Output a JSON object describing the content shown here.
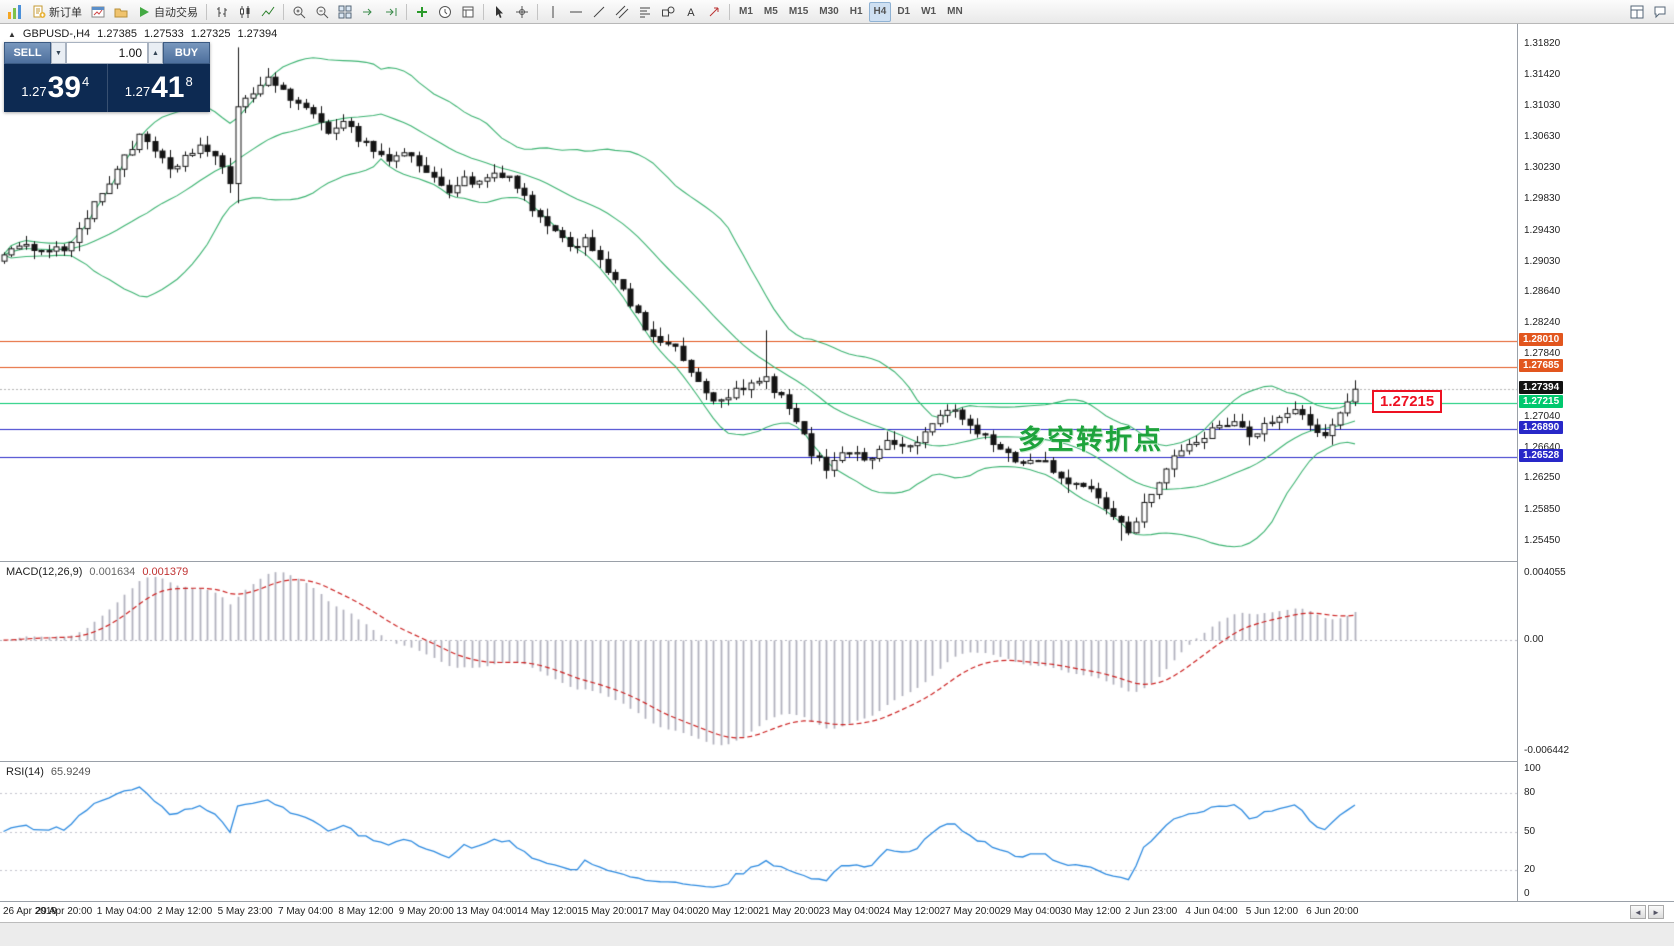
{
  "toolbar": {
    "new_order": "新订单",
    "auto_trading": "自动交易",
    "timeframes": [
      "M1",
      "M5",
      "M15",
      "M30",
      "H1",
      "H4",
      "D1",
      "W1",
      "MN"
    ],
    "active_timeframe": "H4"
  },
  "chart": {
    "marker": "▲",
    "symbol": "GBPUSD-,H4",
    "ohlc": {
      "open": "1.27385",
      "high": "1.27533",
      "low": "1.27325",
      "close": "1.27394"
    }
  },
  "trade_panel": {
    "sell_label": "SELL",
    "buy_label": "BUY",
    "volume": "1.00",
    "sell_price": {
      "small": "1.27",
      "big": "39",
      "sup": "4"
    },
    "buy_price": {
      "small": "1.27",
      "big": "41",
      "sup": "8"
    }
  },
  "annotations": {
    "turning_point": "多空转折点",
    "price_callout": "1.27215"
  },
  "scrollbar": {
    "left": "◄",
    "right": "►"
  },
  "chart_data": {
    "type": "candlestick",
    "symbol": "GBPUSD-",
    "timeframe": "H4",
    "price_axis": {
      "axis_min": 1.2519,
      "axis_max": 1.3208,
      "ticks": [
        1.3182,
        1.3142,
        1.3103,
        1.3063,
        1.3023,
        1.2983,
        1.2943,
        1.2903,
        1.2864,
        1.2824,
        1.2784,
        1.2744,
        1.2704,
        1.2664,
        1.2625,
        1.2585,
        1.2545
      ]
    },
    "hlines": [
      {
        "price": 1.2801,
        "label": "1.28010",
        "color": "#E2561E"
      },
      {
        "price": 1.27685,
        "label": "1.27685",
        "color": "#E2561E"
      },
      {
        "price": 1.27215,
        "label": "1.27215",
        "color": "#00C86E"
      },
      {
        "price": 1.2689,
        "label": "1.26890",
        "color": "#2828C8"
      },
      {
        "price": 1.26528,
        "label": "1.26528",
        "color": "#2828C8"
      }
    ],
    "current_price": {
      "price": 1.27394,
      "label": "1.27394",
      "color": "#111111"
    },
    "bars_total": 180,
    "bar_keyframes": [
      [
        0,
        1.2916
      ],
      [
        4,
        1.2922
      ],
      [
        8,
        1.2918
      ],
      [
        10,
        1.2945
      ],
      [
        12,
        1.2975
      ],
      [
        14,
        1.3005
      ],
      [
        16,
        1.304
      ],
      [
        18,
        1.3062
      ],
      [
        20,
        1.3045
      ],
      [
        22,
        1.3018
      ],
      [
        24,
        1.3038
      ],
      [
        26,
        1.3052
      ],
      [
        28,
        1.3035
      ],
      [
        30,
        1.3005
      ],
      [
        31,
        1.3105
      ],
      [
        33,
        1.312
      ],
      [
        35,
        1.3135
      ],
      [
        37,
        1.3125
      ],
      [
        39,
        1.3105
      ],
      [
        41,
        1.3088
      ],
      [
        43,
        1.3072
      ],
      [
        45,
        1.3085
      ],
      [
        47,
        1.3062
      ],
      [
        49,
        1.3048
      ],
      [
        51,
        1.3032
      ],
      [
        53,
        1.3045
      ],
      [
        55,
        1.3028
      ],
      [
        57,
        1.3008
      ],
      [
        59,
        1.2995
      ],
      [
        61,
        1.301
      ],
      [
        63,
        1.3002
      ],
      [
        65,
        1.3015
      ],
      [
        67,
        1.3008
      ],
      [
        69,
        1.2985
      ],
      [
        71,
        1.2958
      ],
      [
        73,
        1.2938
      ],
      [
        75,
        1.2922
      ],
      [
        77,
        1.2932
      ],
      [
        79,
        1.2908
      ],
      [
        81,
        1.2878
      ],
      [
        83,
        1.2848
      ],
      [
        85,
        1.2818
      ],
      [
        87,
        1.2802
      ],
      [
        89,
        1.279
      ],
      [
        91,
        1.2762
      ],
      [
        93,
        1.2732
      ],
      [
        95,
        1.2722
      ],
      [
        97,
        1.2736
      ],
      [
        99,
        1.2744
      ],
      [
        101,
        1.2752
      ],
      [
        103,
        1.2728
      ],
      [
        105,
        1.2698
      ],
      [
        107,
        1.2658
      ],
      [
        109,
        1.2638
      ],
      [
        111,
        1.2662
      ],
      [
        113,
        1.2655
      ],
      [
        115,
        1.2648
      ],
      [
        117,
        1.2678
      ],
      [
        119,
        1.2662
      ],
      [
        121,
        1.2672
      ],
      [
        123,
        1.2695
      ],
      [
        125,
        1.2716
      ],
      [
        127,
        1.2702
      ],
      [
        129,
        1.2682
      ],
      [
        131,
        1.267
      ],
      [
        133,
        1.2658
      ],
      [
        135,
        1.2642
      ],
      [
        137,
        1.2652
      ],
      [
        139,
        1.2636
      ],
      [
        141,
        1.262
      ],
      [
        143,
        1.2612
      ],
      [
        145,
        1.2602
      ],
      [
        147,
        1.2578
      ],
      [
        149,
        1.2556
      ],
      [
        151,
        1.2592
      ],
      [
        153,
        1.2622
      ],
      [
        155,
        1.2652
      ],
      [
        157,
        1.2666
      ],
      [
        159,
        1.268
      ],
      [
        161,
        1.269
      ],
      [
        163,
        1.2702
      ],
      [
        165,
        1.2682
      ],
      [
        167,
        1.2692
      ],
      [
        169,
        1.2702
      ],
      [
        171,
        1.2712
      ],
      [
        173,
        1.2696
      ],
      [
        175,
        1.2678
      ],
      [
        177,
        1.2705
      ],
      [
        179,
        1.27394
      ]
    ],
    "spikes": [
      {
        "bar": 31,
        "high": 1.3178,
        "low": 1.2978
      },
      {
        "bar": 101,
        "high": 1.2815
      },
      {
        "bar": 148,
        "low": 1.2545
      },
      {
        "bar": 149,
        "low": 1.2552
      }
    ],
    "bollinger": {
      "period": 20,
      "deviation": 2,
      "color": "#3CB371"
    },
    "time_axis": {
      "bars_per_label": 8,
      "labels": [
        "26 Apr 2019",
        "29 Apr 20:00",
        "1 May 04:00",
        "2 May 12:00",
        "5 May 23:00",
        "7 May 04:00",
        "8 May 12:00",
        "9 May 20:00",
        "13 May 04:00",
        "14 May 12:00",
        "15 May 20:00",
        "17 May 04:00",
        "20 May 12:00",
        "21 May 20:00",
        "23 May 04:00",
        "24 May 12:00",
        "27 May 20:00",
        "29 May 04:00",
        "30 May 12:00",
        "2 Jun 23:00",
        "4 Jun 04:00",
        "5 Jun 12:00",
        "6 Jun 20:00"
      ]
    },
    "indicators": {
      "macd": {
        "name": "MACD(12,26,9)",
        "value_main": "0.001634",
        "value_signal": "0.001379",
        "fast": 12,
        "slow": 26,
        "signal": 9,
        "scale_top": "0.004055",
        "scale_zero": "0.00",
        "scale_bottom": "-0.006442",
        "histogram_color": "#B2B2BE",
        "signal_color": "#CC2222"
      },
      "rsi": {
        "name": "RSI(14)",
        "value": "65.9249",
        "period": 14,
        "levels": [
          80,
          50,
          20
        ],
        "scale_top": "100",
        "scale_bottom": "0",
        "line_color": "#2E8BE0"
      }
    }
  }
}
